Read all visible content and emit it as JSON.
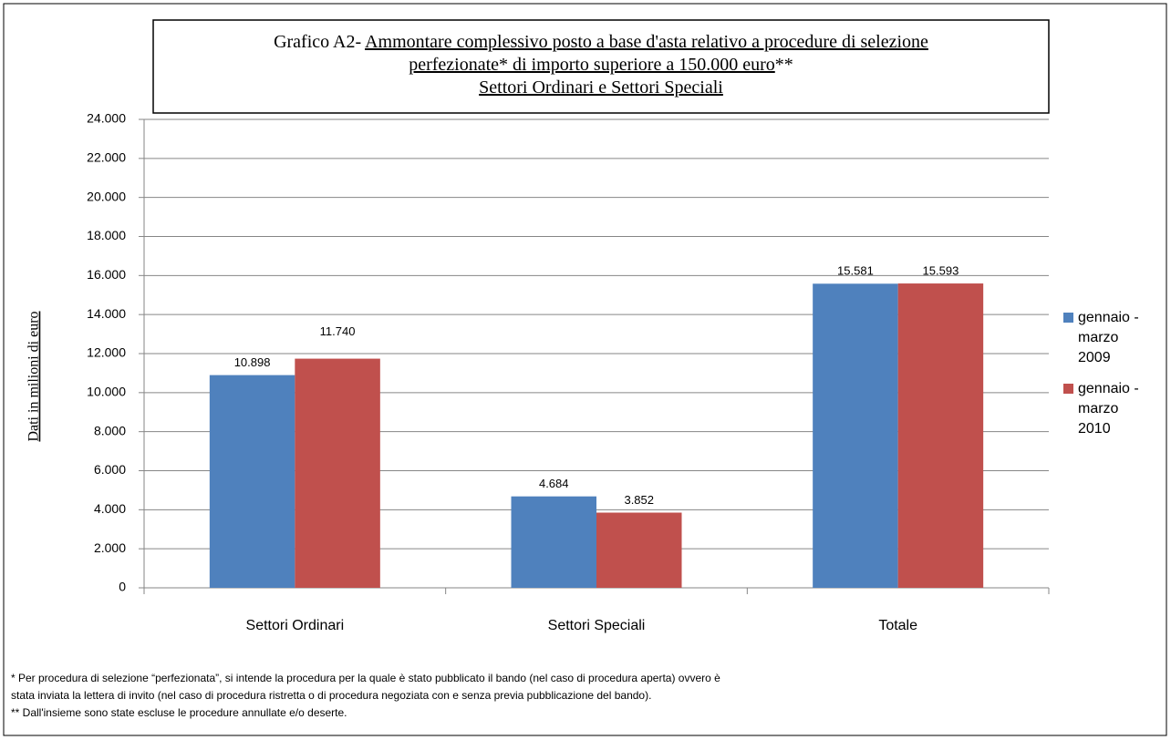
{
  "chart_data": {
    "type": "bar",
    "title_lines": [
      [
        {
          "text": "Grafico  A2- ",
          "underline": false
        },
        {
          "text": "Ammontare complessivo posto a base d'asta relativo a procedure di selezione",
          "underline": true
        }
      ],
      [
        {
          "text": "perfezionate* di importo superiore a 150.000 euro",
          "underline": true
        },
        {
          "text": "**",
          "underline": false
        }
      ],
      [
        {
          "text": "Settori Ordinari e Settori Speciali",
          "underline": true
        }
      ]
    ],
    "ylabel": "Dati in milioni di euro",
    "categories": [
      "Settori Ordinari",
      "Settori Speciali",
      "Totale"
    ],
    "series": [
      {
        "name": "gennaio - marzo 2009",
        "color": "#4f81bd",
        "values": [
          10898,
          4684,
          15581
        ],
        "value_labels": [
          "10.898",
          "4.684",
          "15.581"
        ]
      },
      {
        "name": "gennaio - marzo 2010",
        "color": "#c0504d",
        "values": [
          11740,
          3852,
          15593
        ],
        "value_labels": [
          "11.740",
          "3.852",
          "15.593"
        ]
      }
    ],
    "ylim": [
      0,
      24000
    ],
    "yticks": [
      0,
      {
        "value": 2000,
        "label": "2.000"
      },
      {
        "value": 4000,
        "label": "4.000"
      },
      {
        "value": 6000,
        "label": "6.000"
      },
      {
        "value": 8000,
        "label": "8.000"
      },
      {
        "value": 10000,
        "label": "10.000"
      },
      {
        "value": 12000,
        "label": "12.000"
      },
      {
        "value": 14000,
        "label": "14.000"
      },
      {
        "value": 16000,
        "label": "16.000"
      },
      {
        "value": 18000,
        "label": "18.000"
      },
      {
        "value": 20000,
        "label": "20.000"
      },
      {
        "value": 22000,
        "label": "22.000"
      },
      {
        "value": 24000,
        "label": "24.000"
      }
    ],
    "grid": true,
    "legend": "right",
    "notes": [
      "* Per procedura di selezione “perfezionata”, si intende la procedura per la quale è stato pubblicato il bando (nel caso di procedura aperta) ovvero è",
      "stata inviata la lettera di invito (nel caso di procedura ristretta o di procedura negoziata con e senza previa pubblicazione del bando).",
      "** Dall'insieme sono state escluse le procedure annullate e/o deserte."
    ]
  }
}
